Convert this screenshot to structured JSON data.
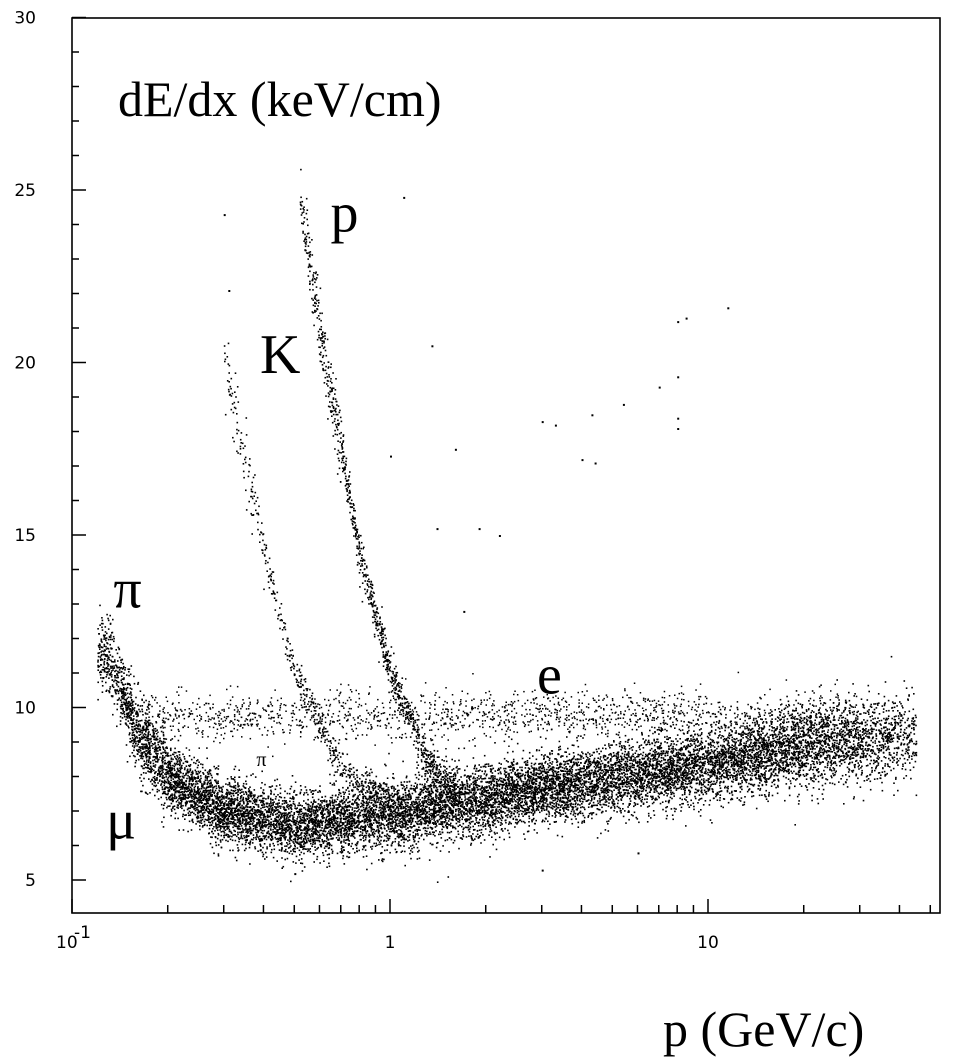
{
  "chart_data": {
    "type": "scatter",
    "title": "",
    "ylabel": "dE/dx (keV/cm)",
    "xlabel": "p (GeV/c)",
    "x_scale": "log",
    "xlim": [
      0.1,
      60
    ],
    "ylim": [
      4,
      30
    ],
    "grid": false,
    "x_tick_labels": [
      {
        "value": 0.1,
        "base": "10",
        "exp": "-1"
      },
      {
        "value": 1,
        "label": "1"
      },
      {
        "value": 10,
        "label": "10"
      }
    ],
    "y_ticks": [
      5,
      10,
      15,
      20,
      25,
      30
    ],
    "y_tick_labels": [
      "5",
      "10",
      "15",
      "20",
      "25",
      "30"
    ],
    "annotations": [
      {
        "text": "p",
        "x": 0.65,
        "y": 23.8,
        "size": "large"
      },
      {
        "text": "K",
        "x": 0.39,
        "y": 19.7,
        "size": "large"
      },
      {
        "text": "π",
        "x": 0.135,
        "y": 12.9,
        "size": "large"
      },
      {
        "text": "e",
        "x": 2.9,
        "y": 10.4,
        "size": "large"
      },
      {
        "text": "μ",
        "x": 0.128,
        "y": 6.2,
        "size": "large"
      },
      {
        "text": "π",
        "x": 0.38,
        "y": 8.3,
        "size": "small"
      }
    ],
    "series": [
      {
        "particle": "π",
        "p_range": [
          0.12,
          45
        ],
        "center_points": [
          [
            0.13,
            11.5
          ],
          [
            0.16,
            9.3
          ],
          [
            0.2,
            8.0
          ],
          [
            0.3,
            7.0
          ],
          [
            0.5,
            6.6
          ],
          [
            1,
            6.9
          ],
          [
            2,
            7.4
          ],
          [
            5,
            8.0
          ],
          [
            10,
            8.4
          ],
          [
            20,
            8.9
          ],
          [
            40,
            9.2
          ]
        ]
      },
      {
        "particle": "e",
        "p_range": [
          0.17,
          30
        ],
        "center_points": [
          [
            0.17,
            9.7
          ],
          [
            1,
            9.8
          ],
          [
            30,
            9.9
          ]
        ]
      },
      {
        "particle": "K",
        "p_range": [
          0.3,
          1.0
        ],
        "center_points": [
          [
            0.3,
            20.3
          ],
          [
            0.35,
            17
          ],
          [
            0.4,
            14.5
          ],
          [
            0.5,
            11
          ],
          [
            0.7,
            8.3
          ],
          [
            1.0,
            7.2
          ]
        ]
      },
      {
        "particle": "p",
        "p_range": [
          0.52,
          1.6
        ],
        "center_points": [
          [
            0.52,
            24.8
          ],
          [
            0.6,
            21
          ],
          [
            0.7,
            17.5
          ],
          [
            0.8,
            14.5
          ],
          [
            1.0,
            11.0
          ],
          [
            1.3,
            8.5
          ],
          [
            1.6,
            7.6
          ]
        ]
      }
    ]
  },
  "colors": {
    "ink": "#000000",
    "background": "#ffffff"
  }
}
